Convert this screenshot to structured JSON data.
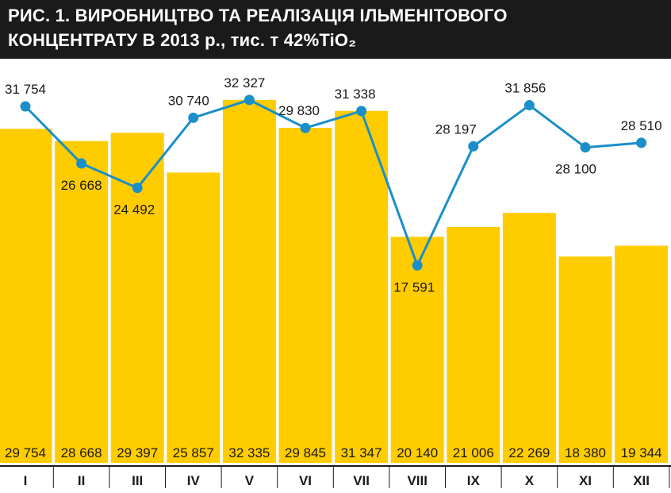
{
  "title": {
    "line1": "РИС. 1. ВИРОБНИЦТВО ТА РЕАЛІЗАЦІЯ ІЛЬМЕНІТОВОГО",
    "line2": "КОНЦЕНТРАТУ В 2013 р., тис. т 42%TiO₂"
  },
  "colors": {
    "bar": "#ffcc00",
    "line": "#1a8fc9",
    "title_bg": "#1a1a1a",
    "title_text": "#ffffff"
  },
  "chart_data": {
    "type": "bar",
    "title": "РИС. 1. ВИРОБНИЦТВО ТА РЕАЛІЗАЦІЯ ІЛЬМЕНІТОВОГО КОНЦЕНТРАТУ В 2013 р., тис. т 42%TiO₂",
    "categories": [
      "I",
      "II",
      "III",
      "IV",
      "V",
      "VI",
      "VII",
      "VIII",
      "IX",
      "X",
      "XI",
      "XII"
    ],
    "series": [
      {
        "type": "bar",
        "values": [
          29754,
          28668,
          29397,
          25857,
          32335,
          29845,
          31347,
          20140,
          21006,
          22269,
          18380,
          19344
        ],
        "labels": [
          "29 754",
          "28 668",
          "29 397",
          "25 857",
          "32 335",
          "29 845",
          "31 347",
          "20 140",
          "21 006",
          "22 269",
          "18 380",
          "19 344"
        ]
      },
      {
        "type": "line",
        "values": [
          31754,
          26668,
          24492,
          30740,
          32327,
          29830,
          31338,
          17591,
          28197,
          31856,
          28100,
          28510
        ],
        "labels": [
          "31 754",
          "26 668",
          "24 492",
          "30 740",
          "32 327",
          "29 830",
          "31 338",
          "17 591",
          "28 197",
          "31 856",
          "28 100",
          "28 510"
        ]
      }
    ],
    "xlabel": "",
    "ylabel": "",
    "grid": false,
    "legend": "none"
  }
}
